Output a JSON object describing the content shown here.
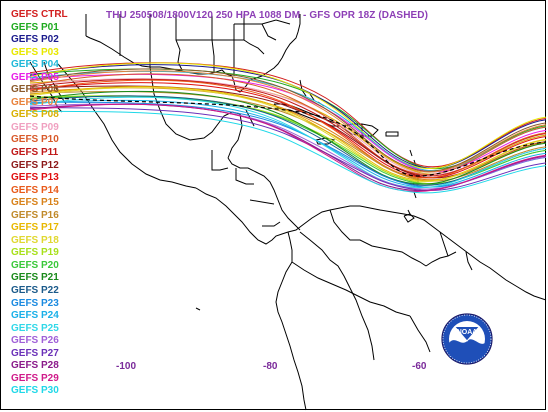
{
  "title": "THU 250508/1800V120  250 HPA 1088 DM - GFS OPR 18Z (DASHED)",
  "legend": [
    {
      "label": "GEFS CTRL",
      "color": "#d21f1f"
    },
    {
      "label": "GEFS P01",
      "color": "#1faa1f"
    },
    {
      "label": "GEFS P02",
      "color": "#1a1a8c"
    },
    {
      "label": "GEFS P03",
      "color": "#e8e800"
    },
    {
      "label": "GEFS P04",
      "color": "#1fb8d8"
    },
    {
      "label": "GEFS P05",
      "color": "#e81fe8"
    },
    {
      "label": "GEFS P06",
      "color": "#8b5a2b"
    },
    {
      "label": "GEFS P07",
      "color": "#e8823c"
    },
    {
      "label": "GEFS P08",
      "color": "#d8b000"
    },
    {
      "label": "GEFS P09",
      "color": "#f0a0c0"
    },
    {
      "label": "GEFS P10",
      "color": "#d85a2a"
    },
    {
      "label": "GEFS P11",
      "color": "#c01818"
    },
    {
      "label": "GEFS P12",
      "color": "#8c1818"
    },
    {
      "label": "GEFS P13",
      "color": "#e01010"
    },
    {
      "label": "GEFS P14",
      "color": "#e85a1a"
    },
    {
      "label": "GEFS P15",
      "color": "#d8821a"
    },
    {
      "label": "GEFS P16",
      "color": "#c08a2a"
    },
    {
      "label": "GEFS P17",
      "color": "#e8b800"
    },
    {
      "label": "GEFS P18",
      "color": "#e0d830"
    },
    {
      "label": "GEFS P19",
      "color": "#a8e01a"
    },
    {
      "label": "GEFS P20",
      "color": "#3ac83a"
    },
    {
      "label": "GEFS P21",
      "color": "#1a8a1a"
    },
    {
      "label": "GEFS P22",
      "color": "#1a5a8a"
    },
    {
      "label": "GEFS P23",
      "color": "#1a8ae0"
    },
    {
      "label": "GEFS P24",
      "color": "#1ab0e8"
    },
    {
      "label": "GEFS P25",
      "color": "#30d8e8"
    },
    {
      "label": "GEFS P26",
      "color": "#a060d8"
    },
    {
      "label": "GEFS P27",
      "color": "#6a30b8"
    },
    {
      "label": "GEFS P28",
      "color": "#8a1a8a"
    },
    {
      "label": "GEFS P29",
      "color": "#d01a8a"
    },
    {
      "label": "GEFS P30",
      "color": "#20d8e8"
    }
  ],
  "longitude_labels": [
    {
      "text": "-100"
    },
    {
      "text": "-80"
    },
    {
      "text": "-60"
    }
  ],
  "logo": {
    "text": "NOAA",
    "name": "noaa-logo"
  }
}
